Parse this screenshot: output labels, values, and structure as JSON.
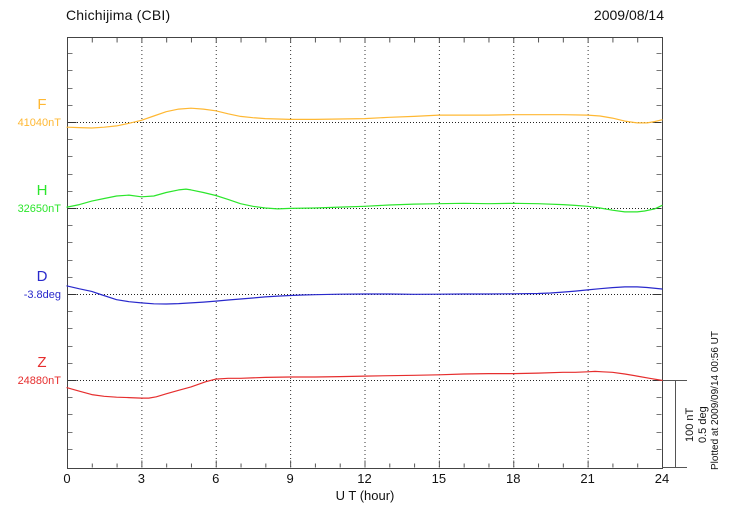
{
  "chart_data": {
    "type": "line",
    "title": "Chichijima (CBI)",
    "date": "2009/08/14",
    "xlabel": "U T (hour)",
    "x_range": [
      0,
      24
    ],
    "x_ticks": [
      0,
      3,
      6,
      9,
      12,
      15,
      18,
      21,
      24
    ],
    "gridline_hours": [
      3,
      6,
      9,
      12,
      15,
      18,
      21
    ],
    "grid": "dotted vertical every 3 hours, dotted horizontal baseline per trace",
    "scale_bar": {
      "nT": "100 nT",
      "deg": "0.5 deg"
    },
    "series": [
      {
        "name": "F",
        "baseline_label": "41040nT",
        "baseline_value": 41040,
        "unit": "nT",
        "color": "#ffb833",
        "x": [
          0,
          0.5,
          1,
          1.5,
          2,
          2.5,
          3,
          3.5,
          4,
          4.5,
          5,
          5.5,
          6,
          6.5,
          7,
          7.5,
          8,
          9,
          10,
          11,
          12,
          13,
          14,
          15,
          16,
          17,
          18,
          19,
          20,
          21,
          21.5,
          22,
          22.5,
          23,
          23.4,
          23.7,
          24
        ],
        "offsets": [
          -6,
          -6.5,
          -7,
          -6,
          -4.5,
          -1.5,
          2,
          7,
          12,
          15,
          16,
          15,
          13,
          9.5,
          6.5,
          5,
          4,
          3,
          3,
          3.5,
          4,
          5.5,
          6.5,
          8,
          8,
          8,
          8.5,
          8.5,
          8.5,
          8,
          7,
          4.5,
          1,
          -1,
          -1,
          0.5,
          2.5
        ]
      },
      {
        "name": "H",
        "baseline_label": "32650nT",
        "baseline_value": 32650,
        "unit": "nT",
        "color": "#2ce62c",
        "x": [
          0,
          0.5,
          1,
          1.5,
          2,
          2.5,
          3,
          3.5,
          4,
          4.5,
          4.8,
          5,
          5.5,
          6,
          6.5,
          7,
          7.5,
          8,
          8.5,
          9,
          10,
          11,
          12,
          13,
          14,
          15,
          16,
          17,
          18,
          19,
          20,
          20.5,
          21,
          21.5,
          22,
          22.5,
          23,
          23.3,
          23.7,
          24
        ],
        "offsets": [
          1,
          4,
          8,
          11,
          14,
          15,
          13,
          14,
          18,
          21,
          22,
          21,
          18,
          14.5,
          10,
          5,
          2,
          0,
          -1,
          -0.5,
          0,
          1,
          2,
          3.5,
          4.5,
          5,
          5.5,
          5,
          5.5,
          5,
          4,
          3,
          2,
          0,
          -2.5,
          -4.5,
          -4.5,
          -3.5,
          -1,
          3
        ]
      },
      {
        "name": "D",
        "baseline_label": "-3.8deg",
        "baseline_value": -3.8,
        "unit": "deg",
        "color": "#2929cc",
        "x": [
          0,
          0.5,
          1,
          1.3,
          2,
          2.5,
          3,
          3.5,
          4,
          4.5,
          5,
          5.5,
          6,
          6.5,
          7,
          7.5,
          8,
          8.5,
          9,
          9.5,
          10,
          11,
          12,
          13,
          14,
          15,
          16,
          17,
          18,
          19,
          19.5,
          20,
          20.5,
          21,
          21.5,
          22,
          22.5,
          23,
          23.4,
          24
        ],
        "offsets": [
          0.047,
          0.03,
          0.015,
          0,
          -0.033,
          -0.045,
          -0.052,
          -0.057,
          -0.058,
          -0.056,
          -0.052,
          -0.047,
          -0.041,
          -0.035,
          -0.029,
          -0.023,
          -0.017,
          -0.012,
          -0.009,
          -0.006,
          -0.004,
          -0.001,
          0,
          0,
          -0.002,
          -0.001,
          0,
          0,
          0.001,
          0.003,
          0.006,
          0.011,
          0.017,
          0.024,
          0.031,
          0.037,
          0.041,
          0.041,
          0.038,
          0.029
        ]
      },
      {
        "name": "Z",
        "baseline_label": "24880nT",
        "baseline_value": 24880,
        "unit": "nT",
        "color": "#e62e2e",
        "x": [
          0,
          0.5,
          1,
          1.5,
          2,
          2.5,
          3,
          3.3,
          3.6,
          4,
          4.5,
          5,
          5.3,
          5.6,
          6,
          6.5,
          7,
          8,
          9,
          10,
          11,
          12,
          13,
          14,
          15,
          16,
          17,
          18,
          19,
          20,
          20.5,
          21,
          21.3,
          21.6,
          22,
          22.5,
          23,
          23.5,
          24
        ],
        "offsets": [
          -9,
          -13,
          -17,
          -19,
          -20,
          -20.5,
          -21,
          -21,
          -19.5,
          -16,
          -12,
          -8,
          -5,
          -2,
          1,
          2,
          2,
          3,
          3.5,
          3.5,
          4,
          4.5,
          5,
          5.5,
          6,
          7,
          7.5,
          7.5,
          8,
          9,
          9,
          9.5,
          10,
          9.5,
          9,
          7,
          4.5,
          2,
          -0.5
        ]
      }
    ]
  },
  "footer": {
    "plotted_at": "Plotted at 2009/09/14 00:56 UT"
  }
}
